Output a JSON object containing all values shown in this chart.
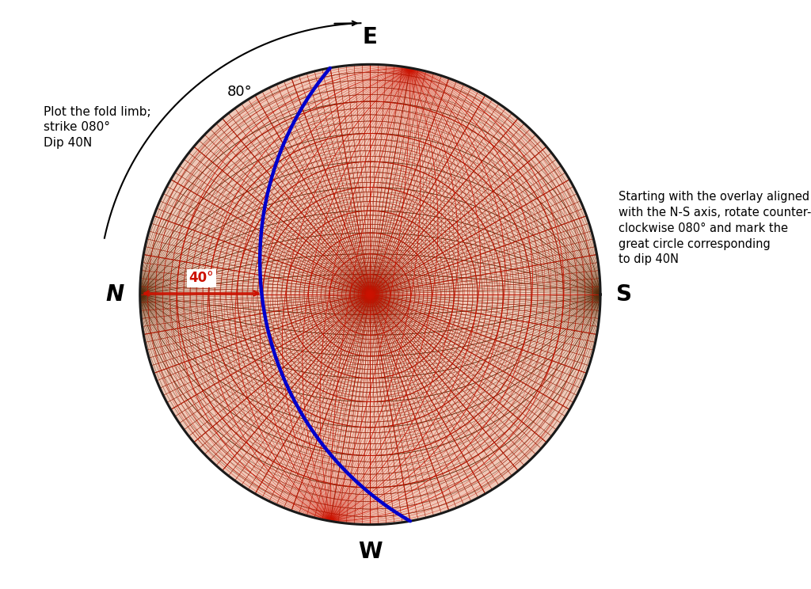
{
  "bg_color": "#f0c8b8",
  "grid_color_dark": "#5a2d0c",
  "grid_color_red": "#cc1100",
  "great_circle_color": "#0000cc",
  "outline_color": "#1a1a1a",
  "N_label": "N",
  "E_label": "E",
  "S_label": "S",
  "W_label": "W",
  "text_upper_left": "Plot the fold limb;\nstrike 080°\nDip 40N",
  "text_upper_left_angle": "80°",
  "text_right": "Starting with the overlay aligned\nwith the N-S axis, rotate counter-\nclockwise 080° and mark the\ngreat circle corresponding\nto dip 40N",
  "text_dip_label": "40°",
  "rotation_deg": 80,
  "figsize": [
    10.24,
    7.44
  ],
  "dpi": 100
}
